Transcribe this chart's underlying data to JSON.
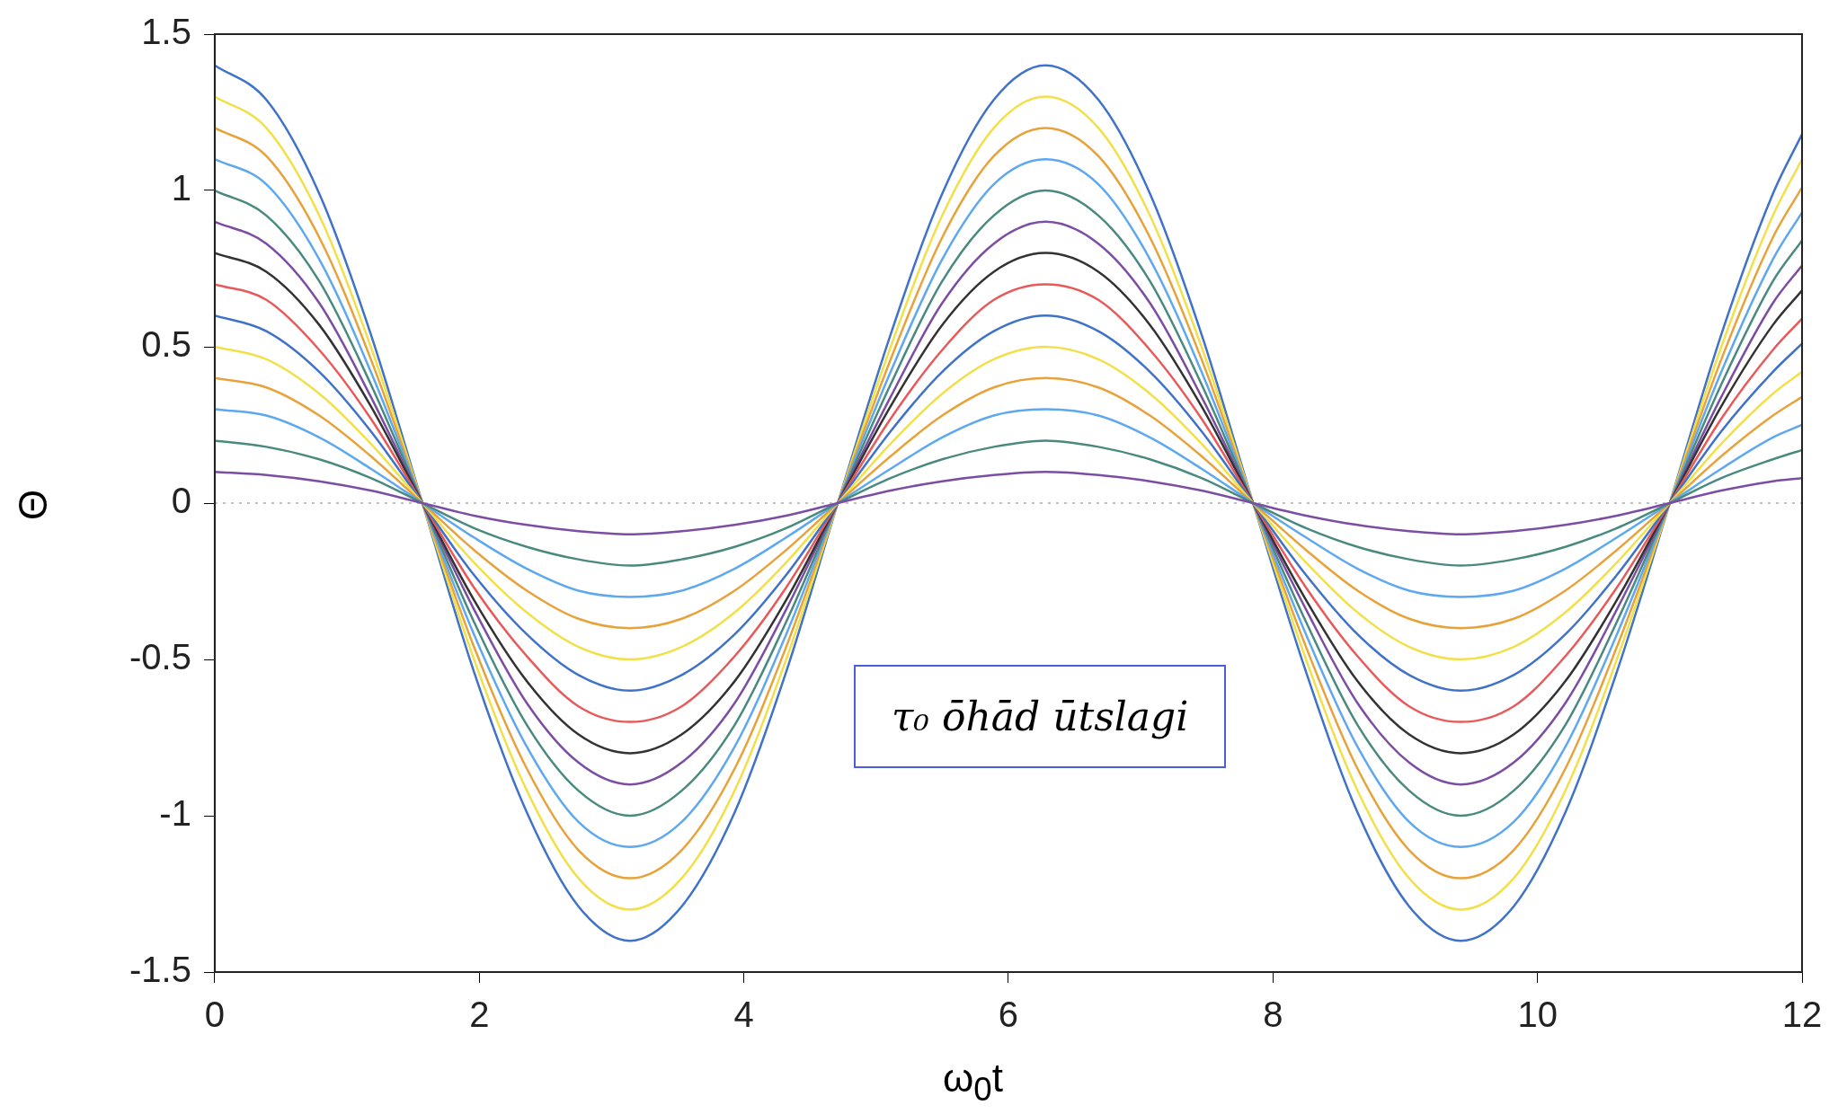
{
  "chart_data": {
    "type": "line",
    "xlabel": "ω$_{0}$t",
    "ylabel": "Θ",
    "annotations": [
      "τ₀ ōhād ūtslagi"
    ],
    "x": [
      0,
      0.39,
      0.79,
      1.18,
      1.57,
      1.96,
      2.36,
      2.75,
      3.14,
      3.53,
      3.93,
      4.32,
      4.71,
      5.11,
      5.5,
      5.89,
      6.28,
      6.68,
      7.07,
      7.46,
      7.85,
      8.25,
      8.64,
      9.03,
      9.42,
      9.82,
      10.21,
      10.6,
      11,
      11.39,
      11.78,
      12
    ],
    "xlim": [
      0,
      12
    ],
    "xticks": [
      0,
      2,
      4,
      6,
      8,
      10,
      12
    ],
    "ylim": [
      -1.5,
      1.5
    ],
    "yticks": [
      -1.5,
      -1,
      -0.5,
      0,
      0.5,
      1,
      1.5
    ],
    "grid": false,
    "legend": false,
    "marker": "none",
    "line_style": "solid",
    "ref_lines": [
      {
        "axis": "y",
        "value": 0,
        "color": "#aaaaaa",
        "line_style": "dotted"
      }
    ],
    "series": [
      {
        "color": "#7b4ea3",
        "values": [
          0.1,
          0.09,
          0.07,
          0.04,
          0,
          -0.04,
          -0.07,
          -0.09,
          -0.1,
          -0.09,
          -0.07,
          -0.04,
          0,
          0.04,
          0.07,
          0.09,
          0.1,
          0.09,
          0.07,
          0.04,
          0,
          -0.04,
          -0.07,
          -0.09,
          -0.1,
          -0.09,
          -0.07,
          -0.04,
          0,
          0.04,
          0.07,
          0.08
        ]
      },
      {
        "color": "#4a8a7e",
        "values": [
          0.2,
          0.18,
          0.14,
          0.08,
          0,
          -0.08,
          -0.14,
          -0.18,
          -0.2,
          -0.18,
          -0.14,
          -0.08,
          0,
          0.08,
          0.14,
          0.18,
          0.2,
          0.18,
          0.14,
          0.08,
          0,
          -0.08,
          -0.14,
          -0.18,
          -0.2,
          -0.18,
          -0.14,
          -0.08,
          0,
          0.08,
          0.14,
          0.17
        ]
      },
      {
        "color": "#5ea8f0",
        "values": [
          0.3,
          0.28,
          0.21,
          0.11,
          0,
          -0.11,
          -0.21,
          -0.28,
          -0.3,
          -0.28,
          -0.21,
          -0.11,
          0,
          0.11,
          0.21,
          0.28,
          0.3,
          0.28,
          0.21,
          0.11,
          0,
          -0.11,
          -0.21,
          -0.28,
          -0.3,
          -0.28,
          -0.21,
          -0.11,
          0,
          0.11,
          0.21,
          0.25
        ]
      },
      {
        "color": "#e8a23a",
        "values": [
          0.4,
          0.37,
          0.28,
          0.15,
          0,
          -0.15,
          -0.28,
          -0.37,
          -0.4,
          -0.37,
          -0.28,
          -0.15,
          0,
          0.15,
          0.28,
          0.37,
          0.4,
          0.37,
          0.28,
          0.15,
          0,
          -0.15,
          -0.28,
          -0.37,
          -0.4,
          -0.37,
          -0.28,
          -0.15,
          0,
          0.15,
          0.28,
          0.34
        ]
      },
      {
        "color": "#f2e04a",
        "values": [
          0.5,
          0.46,
          0.35,
          0.19,
          0,
          -0.19,
          -0.35,
          -0.46,
          -0.5,
          -0.46,
          -0.35,
          -0.19,
          0,
          0.19,
          0.35,
          0.46,
          0.5,
          0.46,
          0.35,
          0.19,
          0,
          -0.19,
          -0.35,
          -0.46,
          -0.5,
          -0.46,
          -0.35,
          -0.19,
          0,
          0.19,
          0.35,
          0.42
        ]
      },
      {
        "color": "#3f72c8",
        "values": [
          0.6,
          0.55,
          0.42,
          0.23,
          0,
          -0.23,
          -0.42,
          -0.55,
          -0.6,
          -0.55,
          -0.42,
          -0.23,
          0,
          0.23,
          0.42,
          0.55,
          0.6,
          0.55,
          0.42,
          0.23,
          0,
          -0.23,
          -0.42,
          -0.55,
          -0.6,
          -0.55,
          -0.42,
          -0.23,
          0,
          0.23,
          0.42,
          0.51
        ]
      },
      {
        "color": "#e85a5a",
        "values": [
          0.7,
          0.65,
          0.49,
          0.27,
          0,
          -0.27,
          -0.49,
          -0.65,
          -0.7,
          -0.65,
          -0.49,
          -0.27,
          0,
          0.27,
          0.49,
          0.65,
          0.7,
          0.65,
          0.49,
          0.27,
          0,
          -0.27,
          -0.49,
          -0.65,
          -0.7,
          -0.65,
          -0.49,
          -0.27,
          0,
          0.27,
          0.49,
          0.59
        ]
      },
      {
        "color": "#333333",
        "values": [
          0.8,
          0.74,
          0.57,
          0.31,
          0,
          -0.31,
          -0.57,
          -0.74,
          -0.8,
          -0.74,
          -0.57,
          -0.31,
          0,
          0.31,
          0.57,
          0.74,
          0.8,
          0.74,
          0.57,
          0.31,
          0,
          -0.31,
          -0.57,
          -0.74,
          -0.8,
          -0.74,
          -0.57,
          -0.31,
          0,
          0.31,
          0.57,
          0.68
        ]
      },
      {
        "color": "#7b4ea3",
        "values": [
          0.9,
          0.83,
          0.64,
          0.34,
          0,
          -0.34,
          -0.64,
          -0.83,
          -0.9,
          -0.83,
          -0.64,
          -0.34,
          0,
          0.34,
          0.64,
          0.83,
          0.9,
          0.83,
          0.64,
          0.34,
          0,
          -0.34,
          -0.64,
          -0.83,
          -0.9,
          -0.83,
          -0.64,
          -0.34,
          0,
          0.34,
          0.64,
          0.76
        ]
      },
      {
        "color": "#4a8a7e",
        "values": [
          1,
          0.92,
          0.71,
          0.38,
          0,
          -0.38,
          -0.71,
          -0.92,
          -1,
          -0.92,
          -0.71,
          -0.38,
          0,
          0.38,
          0.71,
          0.92,
          1,
          0.92,
          0.71,
          0.38,
          0,
          -0.38,
          -0.71,
          -0.92,
          -1,
          -0.92,
          -0.71,
          -0.38,
          0,
          0.38,
          0.71,
          0.84
        ]
      },
      {
        "color": "#5ea8f0",
        "values": [
          1.1,
          1.02,
          0.78,
          0.42,
          0,
          -0.42,
          -0.78,
          -1.02,
          -1.1,
          -1.02,
          -0.78,
          -0.42,
          0,
          0.42,
          0.78,
          1.02,
          1.1,
          1.02,
          0.78,
          0.42,
          0,
          -0.42,
          -0.78,
          -1.02,
          -1.1,
          -1.02,
          -0.78,
          -0.42,
          0,
          0.42,
          0.78,
          0.93
        ]
      },
      {
        "color": "#e8a23a",
        "values": [
          1.2,
          1.11,
          0.85,
          0.46,
          0,
          -0.46,
          -0.85,
          -1.11,
          -1.2,
          -1.11,
          -0.85,
          -0.46,
          0,
          0.46,
          0.85,
          1.11,
          1.2,
          1.11,
          0.85,
          0.46,
          0,
          -0.46,
          -0.85,
          -1.11,
          -1.2,
          -1.11,
          -0.85,
          -0.46,
          0,
          0.46,
          0.85,
          1.01
        ]
      },
      {
        "color": "#f2e04a",
        "values": [
          1.3,
          1.2,
          0.92,
          0.5,
          0,
          -0.5,
          -0.92,
          -1.2,
          -1.3,
          -1.2,
          -0.92,
          -0.5,
          0,
          0.5,
          0.92,
          1.2,
          1.3,
          1.2,
          0.92,
          0.5,
          0,
          -0.5,
          -0.92,
          -1.2,
          -1.3,
          -1.2,
          -0.92,
          -0.5,
          0,
          0.5,
          0.92,
          1.1
        ]
      },
      {
        "color": "#3f72c8",
        "values": [
          1.4,
          1.29,
          0.99,
          0.54,
          0,
          -0.54,
          -0.99,
          -1.29,
          -1.4,
          -1.29,
          -0.99,
          -0.54,
          0,
          0.54,
          0.99,
          1.29,
          1.4,
          1.29,
          0.99,
          0.54,
          0,
          -0.54,
          -0.99,
          -1.29,
          -1.4,
          -1.29,
          -0.99,
          -0.54,
          0,
          0.54,
          0.99,
          1.18
        ]
      }
    ]
  }
}
